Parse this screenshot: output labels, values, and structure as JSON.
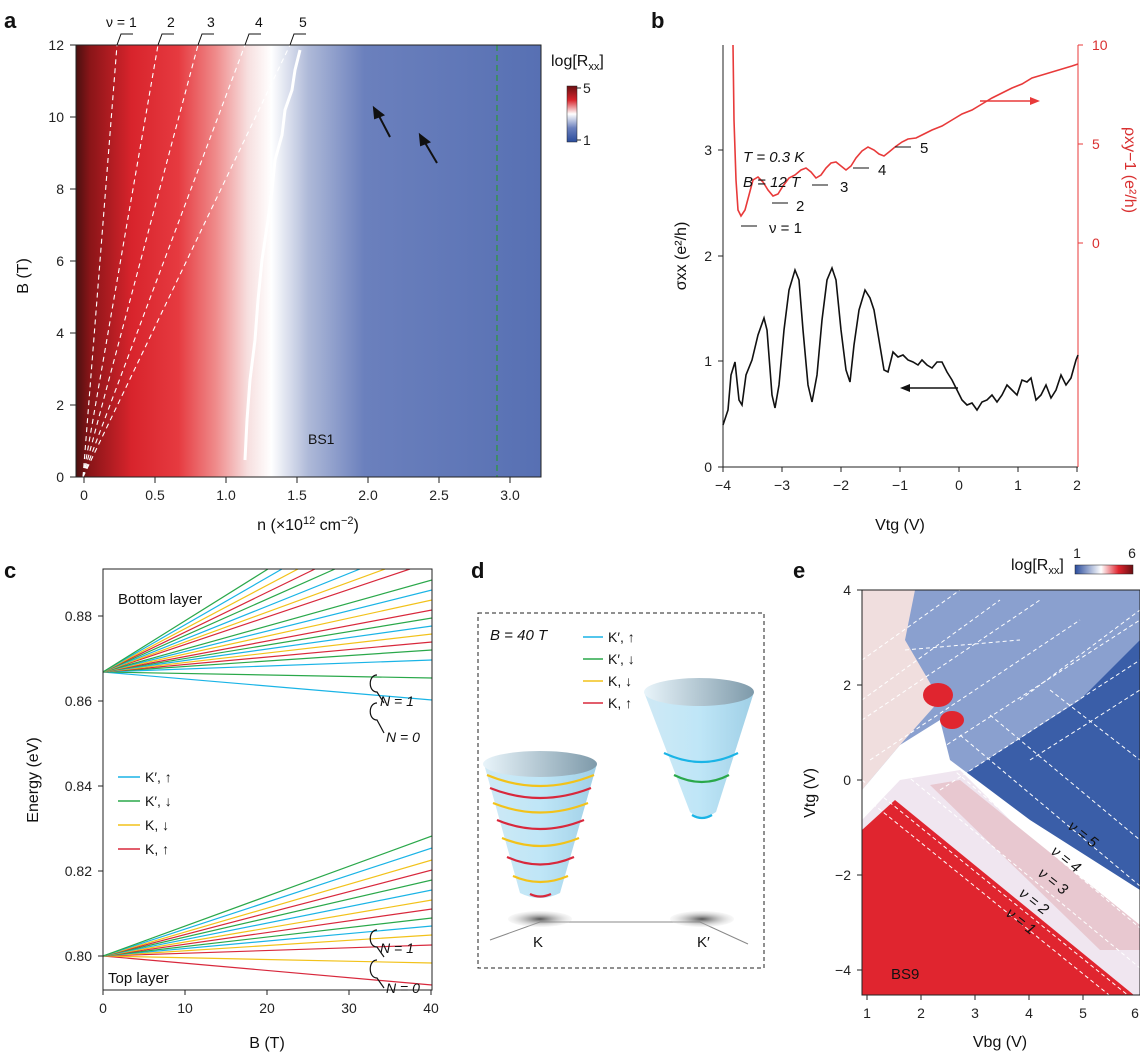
{
  "panels": {
    "a": {
      "letter": "a",
      "nu_labels": [
        "ν = 1",
        "2",
        "3",
        "4",
        "5"
      ],
      "colorbar_title": "log[R",
      "colorbar_title_sub": "xx",
      "colorbar_title_end": "]",
      "colorbar_ticks": [
        "5",
        "1"
      ],
      "sample": "BS1",
      "xlabel_pre": "n (×10",
      "xlabel_sup": "12",
      "xlabel_mid": " cm",
      "xlabel_sup2": "−2",
      "xlabel_end": ")",
      "ylabel": "B (T)",
      "xticks": [
        "0",
        "0.5",
        "1.0",
        "1.5",
        "2.0",
        "2.5",
        "3.0"
      ],
      "yticks": [
        "0",
        "2",
        "4",
        "6",
        "8",
        "10",
        "12"
      ]
    },
    "b": {
      "letter": "b",
      "annotation_T": "T = 0.3 K",
      "annotation_B": "B = 12 T",
      "nu_labels": [
        "ν = 1",
        "2",
        "3",
        "4",
        "5"
      ],
      "ylabel_left": "σxx (e²/h)",
      "ylabel_right": "ρxy−1 (e²/h)",
      "xlabel": "Vtg (V)",
      "xticks": [
        "−4",
        "−3",
        "−2",
        "−1",
        "0",
        "1",
        "2"
      ],
      "yticks_left": [
        "0",
        "1",
        "2",
        "3"
      ],
      "yticks_right": [
        "0",
        "5",
        "10"
      ]
    },
    "c": {
      "letter": "c",
      "top_text": "Bottom layer",
      "bottom_text": "Top layer",
      "n_labels": [
        "N = 1",
        "N = 0",
        "N = 1",
        "N = 0"
      ],
      "legend": [
        "K′, ↑",
        "K′, ↓",
        "K, ↓",
        "K, ↑"
      ],
      "ylabel": "Energy (eV)",
      "xlabel": "B (T)",
      "xticks": [
        "0",
        "10",
        "20",
        "30",
        "40"
      ],
      "yticks": [
        "0.80",
        "0.82",
        "0.84",
        "0.86",
        "0.88"
      ]
    },
    "d": {
      "letter": "d",
      "field": "B = 40 T",
      "legend": [
        "K′, ↑",
        "K′, ↓",
        "K, ↓",
        "K, ↑"
      ],
      "valley_labels": [
        "K",
        "K′"
      ]
    },
    "e": {
      "letter": "e",
      "colorbar_title": "log[R",
      "colorbar_title_sub": "xx",
      "colorbar_title_end": "]",
      "colorbar_ticks": [
        "1",
        "6"
      ],
      "nu_labels": [
        "ν = 5",
        "ν = 4",
        "ν = 3",
        "ν = 2",
        "ν = 1"
      ],
      "sample": "BS9",
      "xlabel": "Vbg (V)",
      "ylabel": "Vtg (V)",
      "xticks": [
        "1",
        "2",
        "3",
        "4",
        "5",
        "6"
      ],
      "yticks": [
        "4",
        "2",
        "0",
        "−2",
        "−4"
      ]
    }
  },
  "colors": {
    "legend_cyan": "#1ab4e6",
    "legend_green": "#2aa84a",
    "legend_yellow": "#f2c21a",
    "legend_red": "#d8283c",
    "map_red": "#e0252f",
    "map_blue": "#3a5ea8",
    "curve_red": "#e83a3a"
  }
}
